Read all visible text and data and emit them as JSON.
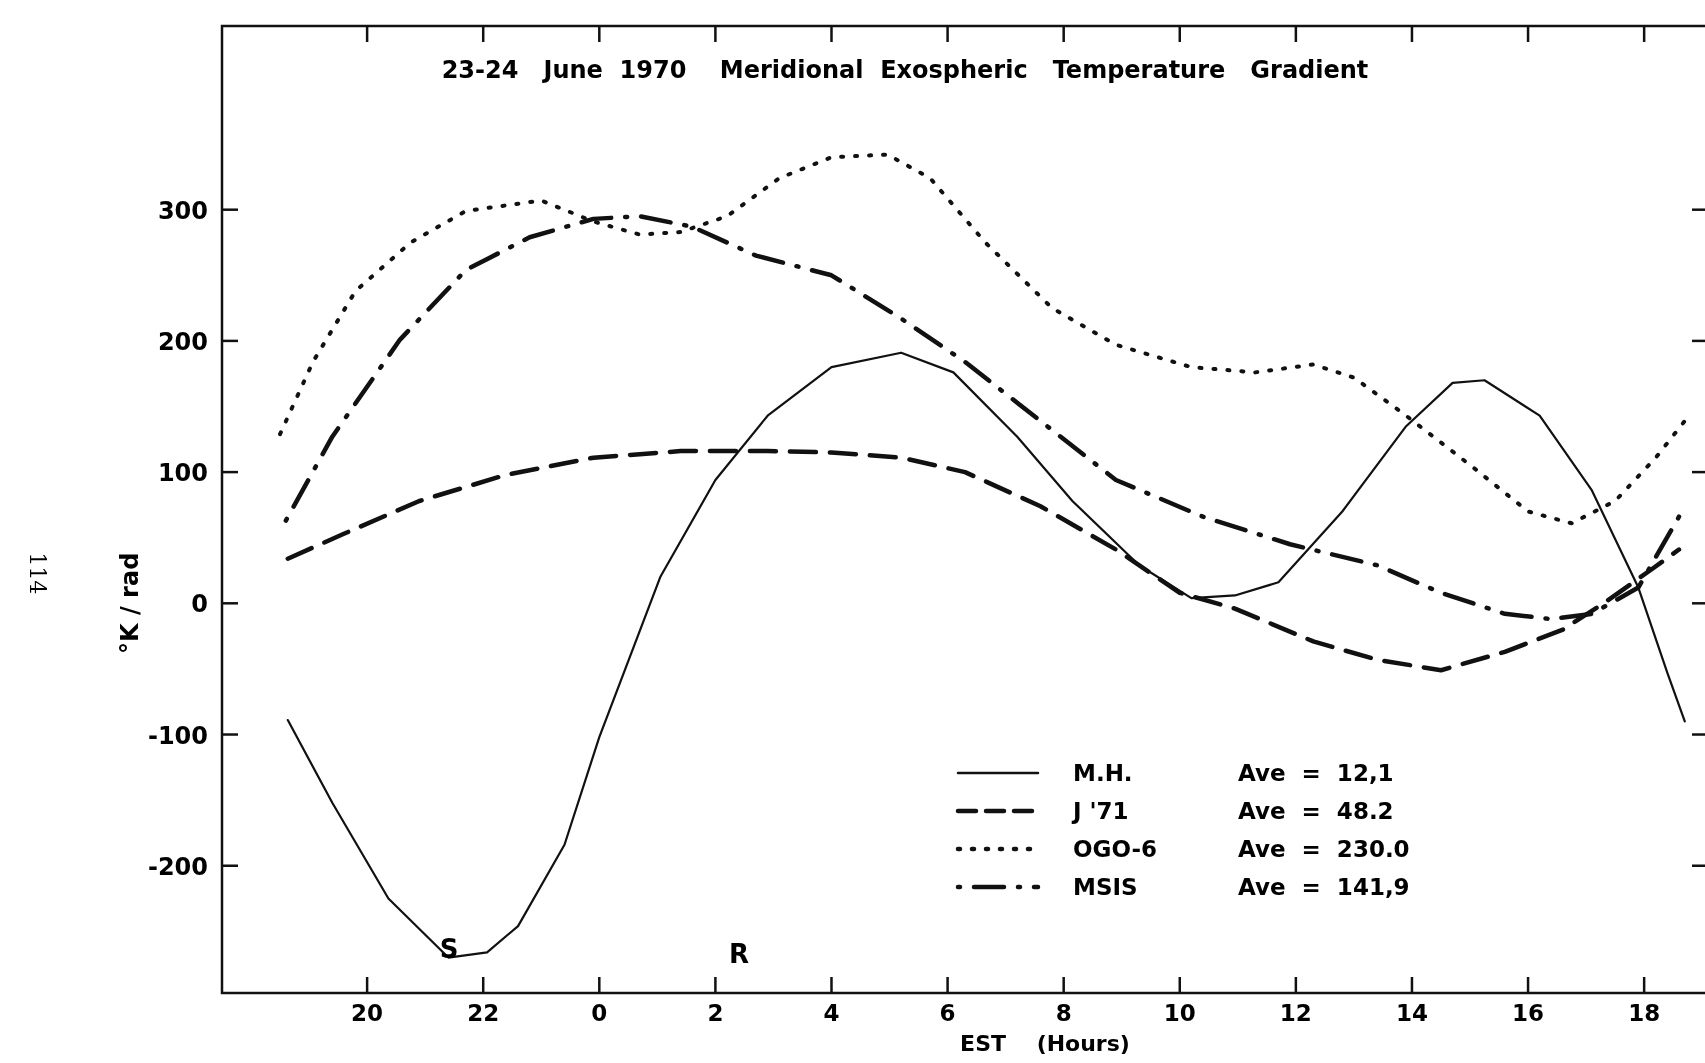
{
  "chart_data": {
    "type": "line",
    "title": "23-24   June  1970    Meridional  Exospheric   Temperature   Gradient",
    "xlabel": "EST    (Hours)",
    "ylabel": "°K / rad",
    "xlim": [
      "1970-06-23T17:30",
      "1970-06-24T19:06"
    ],
    "ylim": [
      -297,
      440
    ],
    "xticks": [
      {
        "value": "1970-06-23T20:00",
        "label": "20"
      },
      {
        "value": "1970-06-23T22:00",
        "label": "22"
      },
      {
        "value": "1970-06-24T00:00",
        "label": "0"
      },
      {
        "value": "1970-06-24T02:00",
        "label": "2"
      },
      {
        "value": "1970-06-24T04:00",
        "label": "4"
      },
      {
        "value": "1970-06-24T06:00",
        "label": "6"
      },
      {
        "value": "1970-06-24T08:00",
        "label": "8"
      },
      {
        "value": "1970-06-24T10:00",
        "label": "10"
      },
      {
        "value": "1970-06-24T12:00",
        "label": "12"
      },
      {
        "value": "1970-06-24T14:00",
        "label": "14"
      },
      {
        "value": "1970-06-24T16:00",
        "label": "16"
      },
      {
        "value": "1970-06-24T18:00",
        "label": "18"
      }
    ],
    "yticks": [
      -200,
      -100,
      0,
      100,
      200,
      300
    ],
    "legend": "bottom right",
    "grid": false,
    "series": [
      {
        "name": "M.H.",
        "color": "#111111",
        "line_style": "solid",
        "x": [
          "1970-06-23T18:38",
          "1970-06-23T19:24",
          "1970-06-23T20:22",
          "1970-06-23T21:24",
          "1970-06-23T22:04",
          "1970-06-23T22:36",
          "1970-06-23T23:24",
          "1970-06-24T00:00",
          "1970-06-24T01:03",
          "1970-06-24T02:00",
          "1970-06-24T02:54",
          "1970-06-24T04:00",
          "1970-06-24T05:12",
          "1970-06-24T06:06",
          "1970-06-24T07:12",
          "1970-06-24T08:09",
          "1970-06-24T09:18",
          "1970-06-24T10:12",
          "1970-06-24T10:57",
          "1970-06-24T11:42",
          "1970-06-24T12:48",
          "1970-06-24T13:54",
          "1970-06-24T14:42",
          "1970-06-24T15:15",
          "1970-06-24T16:12",
          "1970-06-24T17:06",
          "1970-06-24T17:54",
          "1970-06-24T18:24",
          "1970-06-24T18:42"
        ],
        "values": [
          -89,
          -152,
          -225,
          -270,
          -266,
          -246,
          -184,
          -102,
          20,
          94,
          143,
          180,
          191,
          176,
          127,
          78,
          29,
          4,
          6,
          16,
          70,
          135,
          168,
          170,
          143,
          86,
          12,
          -53,
          -90
        ]
      },
      {
        "name": "J '71",
        "color": "#111111",
        "line_style": "dashed",
        "x": [
          "1970-06-23T18:38",
          "1970-06-23T19:36",
          "1970-06-23T20:54",
          "1970-06-23T22:24",
          "1970-06-23T23:54",
          "1970-06-24T01:24",
          "1970-06-24T02:54",
          "1970-06-24T04:00",
          "1970-06-24T05:12",
          "1970-06-24T06:18",
          "1970-06-24T07:36",
          "1970-06-24T08:54",
          "1970-06-24T10:00",
          "1970-06-24T10:57",
          "1970-06-24T12:18",
          "1970-06-24T13:24",
          "1970-06-24T14:30",
          "1970-06-24T15:36",
          "1970-06-24T16:36",
          "1970-06-24T17:18",
          "1970-06-24T18:06",
          "1970-06-24T18:36"
        ],
        "values": [
          34,
          53,
          78,
          98,
          111,
          116,
          116,
          115,
          111,
          100,
          74,
          41,
          8,
          -4,
          -29,
          -43,
          -51,
          -37,
          -20,
          0,
          25,
          41
        ]
      },
      {
        "name": "OGO-6",
        "color": "#111111",
        "line_style": "dotted",
        "x": [
          "1970-06-23T18:30",
          "1970-06-23T19:04",
          "1970-06-23T19:48",
          "1970-06-23T20:45",
          "1970-06-23T21:42",
          "1970-06-23T23:00",
          "1970-06-23T23:54",
          "1970-06-24T00:42",
          "1970-06-24T01:24",
          "1970-06-24T02:12",
          "1970-06-24T03:06",
          "1970-06-24T04:00",
          "1970-06-24T04:58",
          "1970-06-24T05:42",
          "1970-06-24T06:39",
          "1970-06-24T07:48",
          "1970-06-24T08:54",
          "1970-06-24T10:12",
          "1970-06-24T11:18",
          "1970-06-24T12:18",
          "1970-06-24T13:00",
          "1970-06-24T13:54",
          "1970-06-24T15:06",
          "1970-06-24T16:00",
          "1970-06-24T16:45",
          "1970-06-24T17:30",
          "1970-06-24T18:12",
          "1970-06-24T18:42"
        ],
        "values": [
          129,
          184,
          238,
          275,
          299,
          307,
          291,
          281,
          283,
          295,
          324,
          340,
          342,
          324,
          275,
          225,
          197,
          180,
          176,
          182,
          172,
          143,
          102,
          70,
          61,
          78,
          111,
          139
        ]
      },
      {
        "name": "MSIS",
        "color": "#111111",
        "line_style": "dashdot",
        "x": [
          "1970-06-23T18:36",
          "1970-06-23T19:24",
          "1970-06-23T20:34",
          "1970-06-23T21:42",
          "1970-06-23T22:48",
          "1970-06-23T23:54",
          "1970-06-24T00:42",
          "1970-06-24T01:36",
          "1970-06-24T02:42",
          "1970-06-24T04:00",
          "1970-06-24T05:12",
          "1970-06-24T06:18",
          "1970-06-24T07:36",
          "1970-06-24T08:54",
          "1970-06-24T10:24",
          "1970-06-24T11:54",
          "1970-06-24T13:24",
          "1970-06-24T14:30",
          "1970-06-24T15:36",
          "1970-06-24T16:24",
          "1970-06-24T17:06",
          "1970-06-24T17:54",
          "1970-06-24T18:36"
        ],
        "values": [
          63,
          127,
          201,
          254,
          279,
          293,
          295,
          287,
          265,
          250,
          217,
          184,
          139,
          94,
          66,
          45,
          29,
          8,
          -8,
          -12,
          -8,
          12,
          66
        ]
      }
    ],
    "annotations": [
      "Ave  =  12,1",
      "Ave  =  48.2",
      "Ave  =  230.0",
      "Ave  =  141,9",
      "S",
      "R",
      "114"
    ]
  }
}
